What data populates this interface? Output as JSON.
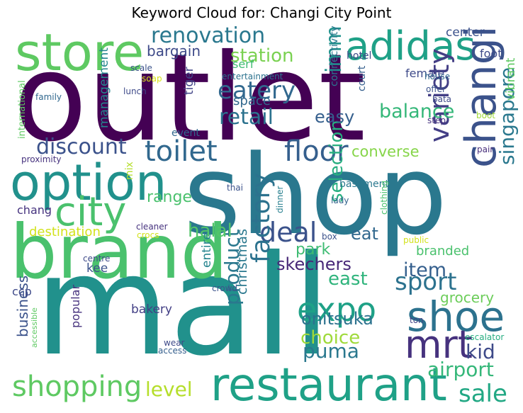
{
  "title": "Keyword Cloud for: Changi City Point",
  "words": [
    {
      "text": "outlet",
      "color": "#440154"
    },
    {
      "text": "shop",
      "color": "#2a788e"
    },
    {
      "text": "mall",
      "color": "#21918c"
    },
    {
      "text": "brand",
      "color": "#4ac16d"
    },
    {
      "text": "store",
      "color": "#5ec962"
    },
    {
      "text": "option",
      "color": "#21918c"
    },
    {
      "text": "city",
      "color": "#4ac16d"
    },
    {
      "text": "adidas",
      "color": "#1fa187"
    },
    {
      "text": "restaurant",
      "color": "#1fa187"
    },
    {
      "text": "shoe",
      "color": "#2c728e"
    },
    {
      "text": "changi",
      "color": "#3b528b"
    },
    {
      "text": "mrt",
      "color": "#46327e"
    },
    {
      "text": "expo",
      "color": "#1fa187"
    },
    {
      "text": "floor",
      "color": "#355f8d"
    },
    {
      "text": "toilet",
      "color": "#31688e"
    },
    {
      "text": "eatery",
      "color": "#31688e"
    },
    {
      "text": "renovation",
      "color": "#2a788e"
    },
    {
      "text": "deal",
      "color": "#3b528b"
    },
    {
      "text": "shopping",
      "color": "#5ec962"
    },
    {
      "text": "variety",
      "color": "#433e85"
    },
    {
      "text": "factory",
      "color": "#2c728e"
    },
    {
      "text": "sport",
      "color": "#2c728e"
    },
    {
      "text": "sale",
      "color": "#22a884"
    },
    {
      "text": "discount",
      "color": "#3b528b"
    },
    {
      "text": "retail",
      "color": "#2c728e"
    },
    {
      "text": "balance",
      "color": "#35b779"
    },
    {
      "text": "imm",
      "color": "#20928c"
    },
    {
      "text": "singapore",
      "color": "#2a788e"
    },
    {
      "text": "airport",
      "color": "#35b779"
    },
    {
      "text": "level",
      "color": "#b5de2b"
    },
    {
      "text": "puma",
      "color": "#2a788e"
    },
    {
      "text": "choice",
      "color": "#9fda3a"
    },
    {
      "text": "product",
      "color": "#2a788e"
    },
    {
      "text": "item",
      "color": "#355f8d"
    },
    {
      "text": "kid",
      "color": "#3e4a89"
    },
    {
      "text": "station",
      "color": "#7ad151"
    },
    {
      "text": "halal",
      "color": "#52c569"
    },
    {
      "text": "east",
      "color": "#2fb47c"
    },
    {
      "text": "selection",
      "color": "#28ae80"
    },
    {
      "text": "onitsuka",
      "color": "#2c728e"
    },
    {
      "text": "skechers",
      "color": "#482878"
    },
    {
      "text": "easy",
      "color": "#355f8d"
    },
    {
      "text": "park",
      "color": "#3fbc73"
    },
    {
      "text": "eat",
      "color": "#31688e"
    },
    {
      "text": "range",
      "color": "#4ac16d"
    },
    {
      "text": "converse",
      "color": "#86d549"
    },
    {
      "text": "grocery",
      "color": "#6ccd5a"
    },
    {
      "text": "bargain",
      "color": "#3e4a89"
    },
    {
      "text": "management",
      "color": "#24868e"
    },
    {
      "text": "space",
      "color": "#31688e"
    },
    {
      "text": "christmas",
      "color": "#2a788e"
    },
    {
      "text": "business",
      "color": "#3b528b"
    },
    {
      "text": "branded",
      "color": "#4ac16d"
    },
    {
      "text": "destination",
      "color": "#d2e21b"
    },
    {
      "text": "center",
      "color": "#3b528b"
    },
    {
      "text": "female",
      "color": "#3e4a89"
    },
    {
      "text": "tiger",
      "color": "#414487"
    },
    {
      "text": "bakery",
      "color": "#423f85"
    },
    {
      "text": "vibrant",
      "color": "#5ec962"
    },
    {
      "text": "popular",
      "color": "#46327e"
    },
    {
      "text": "foot",
      "color": "#3e4a89"
    },
    {
      "text": "chang",
      "color": "#46337f"
    },
    {
      "text": "entire",
      "color": "#25848e"
    },
    {
      "text": "connectivity",
      "color": "#2a788e"
    },
    {
      "text": "ccp",
      "color": "#3e4a89"
    },
    {
      "text": "court",
      "color": "#355f8d"
    },
    {
      "text": "kee",
      "color": "#3b528b"
    },
    {
      "text": "hotel",
      "color": "#3e4a89"
    },
    {
      "text": "serf",
      "color": "#3fbc73"
    },
    {
      "text": "mix",
      "color": "#b5de2b"
    },
    {
      "text": "international",
      "color": "#5ec962"
    },
    {
      "text": "basement",
      "color": "#2a788e"
    },
    {
      "text": "event",
      "color": "#31688e"
    },
    {
      "text": "proximity",
      "color": "#46327e"
    },
    {
      "text": "dinner",
      "color": "#277f8e"
    },
    {
      "text": "clothing",
      "color": "#4ac16d"
    },
    {
      "text": "thai",
      "color": "#3b528b"
    },
    {
      "text": "lady",
      "color": "#33638d"
    },
    {
      "text": "family",
      "color": "#31688e"
    },
    {
      "text": "lunch",
      "color": "#3e4a89"
    },
    {
      "text": "scale",
      "color": "#3b528b"
    },
    {
      "text": "soap",
      "color": "#d8e219"
    },
    {
      "text": "entertainment",
      "color": "#2c728e"
    },
    {
      "text": "house",
      "color": "#31688e"
    },
    {
      "text": "offer",
      "color": "#3b528b"
    },
    {
      "text": "bata",
      "color": "#3e4a89"
    },
    {
      "text": "step",
      "color": "#46327e"
    },
    {
      "text": "boot",
      "color": "#a0da39"
    },
    {
      "text": "pair",
      "color": "#472d7b"
    },
    {
      "text": "cleaner",
      "color": "#46327e"
    },
    {
      "text": "crocs",
      "color": "#d2e21b"
    },
    {
      "text": "box",
      "color": "#3b528b"
    },
    {
      "text": "public",
      "color": "#d2e21b"
    },
    {
      "text": "crowd",
      "color": "#3b528b"
    },
    {
      "text": "centre",
      "color": "#3e4a89"
    },
    {
      "text": "ton",
      "color": "#414487"
    },
    {
      "text": "accessible",
      "color": "#5ec962"
    },
    {
      "text": "wear",
      "color": "#3e4a89"
    },
    {
      "text": "access",
      "color": "#355f8d"
    },
    {
      "text": "escalator",
      "color": "#27ad81"
    }
  ]
}
